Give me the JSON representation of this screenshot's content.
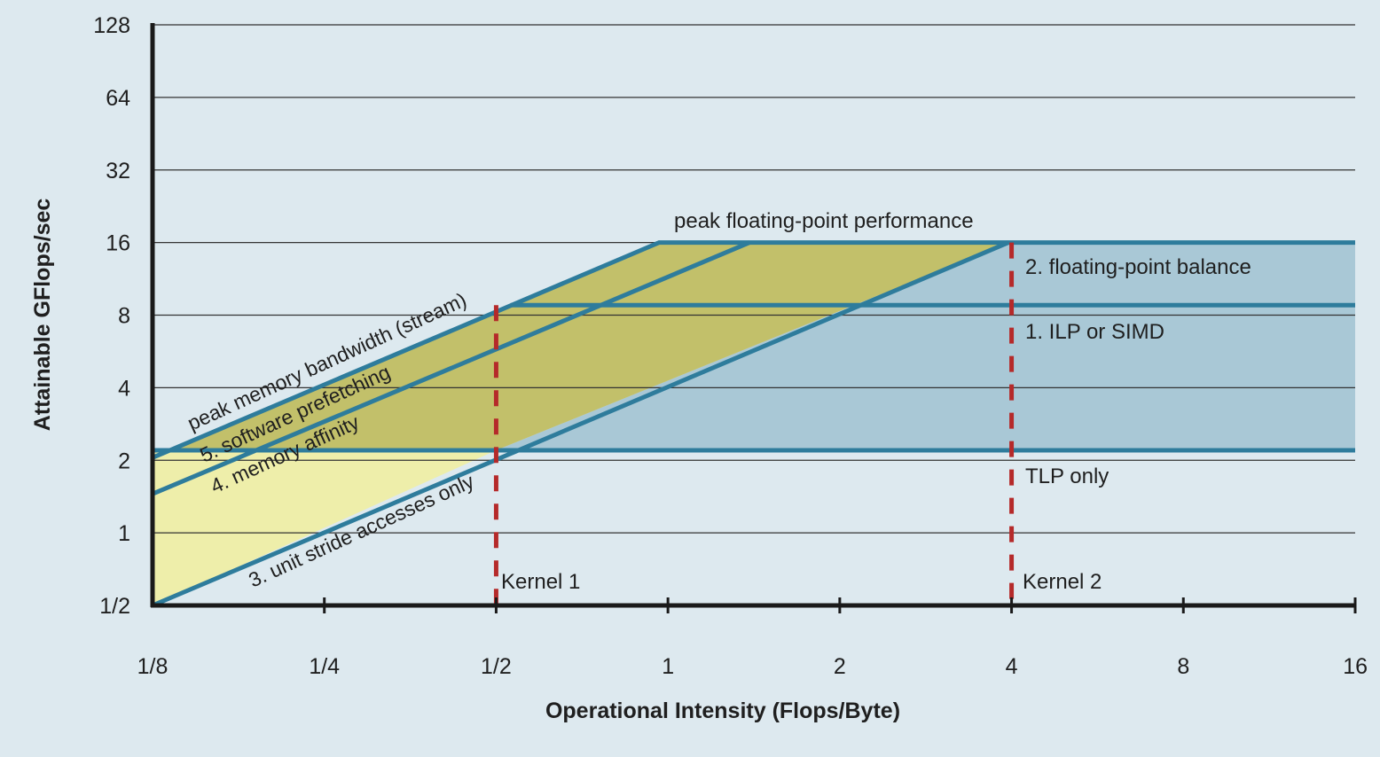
{
  "chart_data": {
    "type": "line",
    "title": "",
    "xlabel": "Operational Intensity (Flops/Byte)",
    "ylabel": "Attainable GFlops/sec",
    "x_scale": "log2",
    "y_scale": "log2",
    "xlim": [
      0.125,
      16
    ],
    "ylim": [
      0.5,
      128
    ],
    "x_ticks": [
      {
        "value": 0.125,
        "label": "1/8"
      },
      {
        "value": 0.25,
        "label": "1/4"
      },
      {
        "value": 0.5,
        "label": "1/2"
      },
      {
        "value": 1,
        "label": "1"
      },
      {
        "value": 2,
        "label": "2"
      },
      {
        "value": 4,
        "label": "4"
      },
      {
        "value": 8,
        "label": "8"
      },
      {
        "value": 16,
        "label": "16"
      }
    ],
    "y_ticks": [
      {
        "value": 0.5,
        "label": "1/2"
      },
      {
        "value": 1,
        "label": "1"
      },
      {
        "value": 2,
        "label": "2"
      },
      {
        "value": 4,
        "label": "4"
      },
      {
        "value": 8,
        "label": "8"
      },
      {
        "value": 16,
        "label": "16"
      },
      {
        "value": 32,
        "label": "32"
      },
      {
        "value": 64,
        "label": "64"
      },
      {
        "value": 128,
        "label": "128"
      }
    ],
    "grid": "horizontal",
    "colors": {
      "background": "#dde9ef",
      "roof_line": "#2e7c9c",
      "blue_region": "#a9c8d6",
      "olive_region": "#c2c06a",
      "yellow_region": "#eeeeaa",
      "kernel_line": "#b52a2a",
      "axis": "#1a1a1a",
      "grid": "#333333"
    },
    "compute_ceilings": [
      {
        "name": "peak floating-point performance",
        "label_side": "above",
        "value": 16
      },
      {
        "name": "2. floating-point balance",
        "label_side": "below",
        "value": 8.8
      },
      {
        "name": "1. ILP or SIMD",
        "label_side": "below",
        "value": 2.2
      },
      {
        "name": "TLP only",
        "label_side": "below",
        "value": 2.2
      }
    ],
    "bandwidth_ceilings": [
      {
        "name": "peak memory bandwidth (stream)",
        "bandwidth": 16.6
      },
      {
        "name": "5. software prefetching",
        "bandwidth": 11.5
      },
      {
        "name": "4. memory affinity",
        "bandwidth": 11.5
      },
      {
        "name": "3. unit stride accesses only",
        "bandwidth": 4.05
      }
    ],
    "kernels": [
      {
        "name": "Kernel 1",
        "x": 0.5,
        "y_top": 8.8
      },
      {
        "name": "Kernel 2",
        "x": 4,
        "y_top": 16
      }
    ],
    "regions": [
      {
        "fill": "blue_region",
        "points": [
          [
            0.5,
            2.2
          ],
          [
            16,
            2.2
          ],
          [
            16,
            16
          ],
          [
            3.95,
            16
          ]
        ]
      },
      {
        "fill": "olive_region",
        "points": [
          [
            0.132,
            2.2
          ],
          [
            0.965,
            16
          ],
          [
            3.95,
            16
          ],
          [
            0.5,
            2.2
          ]
        ]
      },
      {
        "fill": "yellow_region",
        "points": [
          [
            0.125,
            0.5
          ],
          [
            0.125,
            2.2
          ],
          [
            0.5,
            2.2
          ]
        ]
      }
    ],
    "lines": [
      {
        "points": [
          [
            0.125,
            2.05
          ],
          [
            0.965,
            16
          ],
          [
            16,
            16
          ]
        ]
      },
      {
        "points": [
          [
            0.125,
            1.45
          ],
          [
            1.39,
            16
          ]
        ]
      },
      {
        "points": [
          [
            0.125,
            0.5
          ],
          [
            3.95,
            16
          ]
        ]
      },
      {
        "points": [
          [
            0.53,
            8.8
          ],
          [
            16,
            8.8
          ]
        ]
      },
      {
        "points": [
          [
            0.125,
            2.2
          ],
          [
            16,
            2.2
          ]
        ]
      }
    ]
  }
}
